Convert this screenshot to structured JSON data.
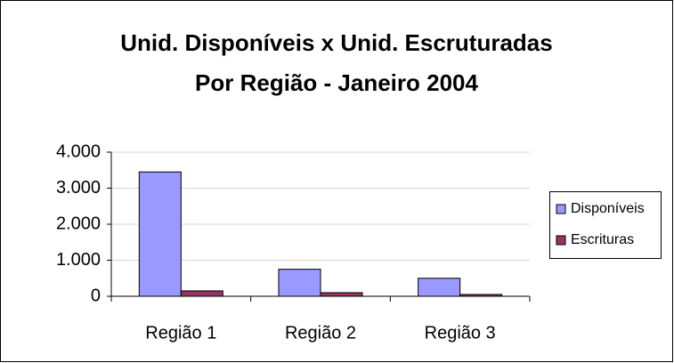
{
  "chart_data": {
    "type": "bar",
    "title": [
      "Unid. Disponíveis x Unid. Escruturadas",
      "Por Região - Janeiro 2004"
    ],
    "categories": [
      "Região 1",
      "Região 2",
      "Região 3"
    ],
    "series": [
      {
        "name": "Disponíveis",
        "color": "#9999ff",
        "values": [
          3450,
          750,
          500
        ]
      },
      {
        "name": "Escrituras",
        "color": "#993366",
        "values": [
          150,
          100,
          50
        ]
      }
    ],
    "ylim": [
      0,
      4000
    ],
    "yticks": [
      0,
      {
        "value": 1000,
        "label": "1.000"
      },
      {
        "value": 2000,
        "label": "2.000"
      },
      {
        "value": 3000,
        "label": "3.000"
      },
      {
        "value": 4000,
        "label": "4.000"
      }
    ],
    "grid": true,
    "legend": "right"
  }
}
